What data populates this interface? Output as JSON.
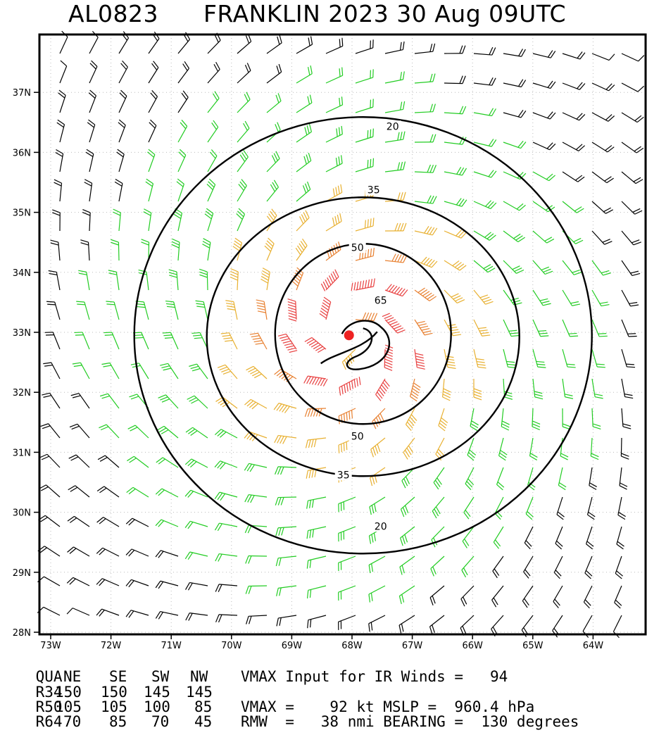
{
  "title": {
    "storm_id": "AL0823",
    "storm_name_date": "FRANKLIN 2023 30 Aug 09UTC"
  },
  "map": {
    "lat_labels": [
      "28N",
      "29N",
      "30N",
      "31N",
      "32N",
      "33N",
      "34N",
      "35N",
      "36N",
      "37N"
    ],
    "lon_labels": [
      "73W",
      "72W",
      "71W",
      "70W",
      "69W",
      "68W",
      "67W",
      "66W",
      "65W",
      "64W"
    ],
    "lat_range": [
      28,
      38.0
    ],
    "lon_range": [
      -73.2,
      -62.8
    ],
    "center": {
      "lat": 32.95,
      "lon": -68.05
    },
    "contour_labels": [
      "20",
      "35",
      "50",
      "65",
      "50",
      "35",
      "20"
    ],
    "colors": {
      "barb_calm": "#000000",
      "barb_ts": "#22cc22",
      "barb_50": "#e8b030",
      "barb_64": "#e88030",
      "barb_hurricane": "#e84040",
      "center_marker": "#ee2222",
      "contour": "#000000"
    }
  },
  "footer": {
    "rows": [
      {
        "label": "QUA",
        "ne": "NE",
        "se": "SE",
        "sw": "SW",
        "nw": "NW",
        "text": "VMAX Input for IR Winds =   94"
      },
      {
        "label": "R34",
        "ne": "150",
        "se": "150",
        "sw": "145",
        "nw": "145",
        "text": ""
      },
      {
        "label": "R50",
        "ne": "105",
        "se": "105",
        "sw": "100",
        "nw": "85",
        "text": "VMAX =    92 kt MSLP =  960.4 hPa"
      },
      {
        "label": "R64",
        "ne": "70",
        "se": "85",
        "sw": "70",
        "nw": "45",
        "text": "RMW  =   38 nmi BEARING =  130 degrees"
      }
    ]
  }
}
